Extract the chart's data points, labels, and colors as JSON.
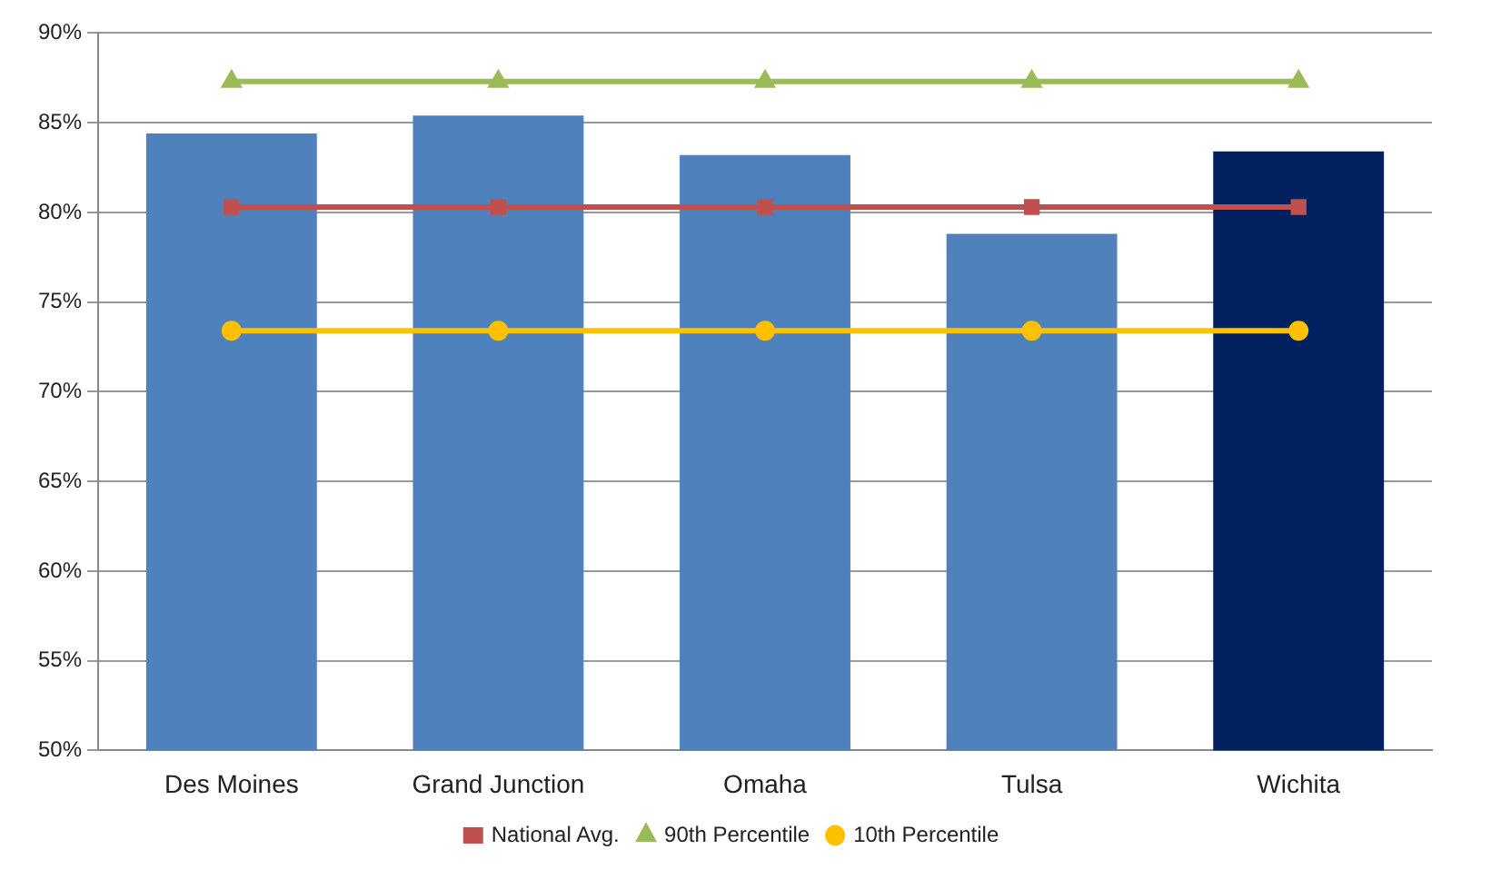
{
  "chart_data": {
    "type": "bar",
    "categories": [
      "Des Moines",
      "Grand Junction",
      "Omaha",
      "Tulsa",
      "Wichita"
    ],
    "series": [
      {
        "colors": [
          "#4f81bd",
          "#4f81bd",
          "#4f81bd",
          "#4f81bd",
          "#002060"
        ],
        "values": [
          84.4,
          85.4,
          83.2,
          78.8,
          83.4
        ]
      },
      {
        "type": "line",
        "name": "National Avg.",
        "color": "#c0504d",
        "marker": "square",
        "values": [
          80.3,
          80.3,
          80.3,
          80.3,
          80.3
        ]
      },
      {
        "type": "line",
        "name": "90th Percentile",
        "color": "#9bbb59",
        "marker": "triangle",
        "values": [
          87.3,
          87.3,
          87.3,
          87.3,
          87.3
        ]
      },
      {
        "type": "line",
        "name": "10th Percentile",
        "color": "#ffc000",
        "marker": "circle",
        "values": [
          73.4,
          73.4,
          73.4,
          73.4,
          73.4
        ]
      }
    ],
    "ylim": [
      50,
      90
    ],
    "yticks": [
      {
        "value": 50,
        "label": "50%"
      },
      {
        "value": 55,
        "label": "55%"
      },
      {
        "value": 60,
        "label": "60%"
      },
      {
        "value": 65,
        "label": "65%"
      },
      {
        "value": 70,
        "label": "70%"
      },
      {
        "value": 75,
        "label": "75%"
      },
      {
        "value": 80,
        "label": "80%"
      },
      {
        "value": 85,
        "label": "85%"
      },
      {
        "value": 90,
        "label": "90%"
      }
    ],
    "grid": "y",
    "legend": "bottom"
  }
}
